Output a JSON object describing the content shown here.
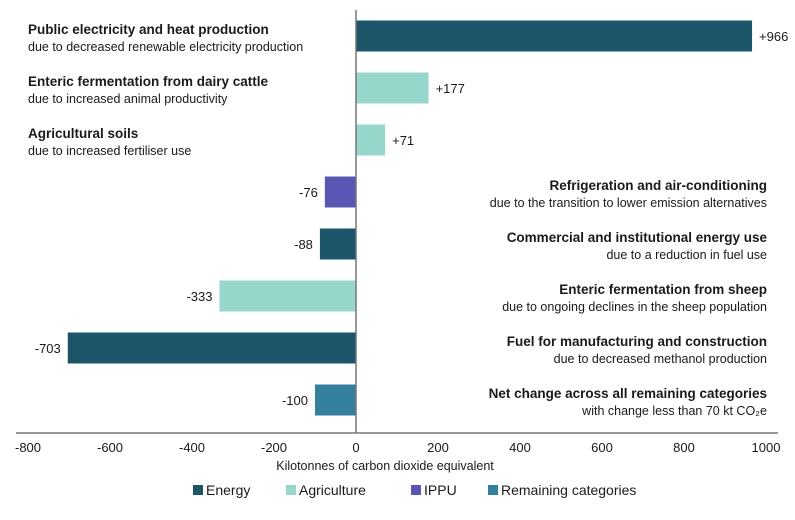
{
  "chart_data": {
    "type": "bar",
    "orientation": "horizontal",
    "title": "",
    "xlabel": "Kilotonnes of carbon dioxide equivalent",
    "ylabel": "",
    "xlim": [
      -800,
      1000
    ],
    "xticks": [
      -800,
      -600,
      -400,
      -200,
      0,
      200,
      400,
      600,
      800,
      1000
    ],
    "grid": false,
    "legend_position": "bottom",
    "legend": [
      {
        "key": "energy",
        "label": "Energy",
        "color": "#1c5468"
      },
      {
        "key": "agriculture",
        "label": "Agriculture",
        "color": "#97d6cb"
      },
      {
        "key": "ippu",
        "label": "IPPU",
        "color": "#5a56b4"
      },
      {
        "key": "remaining",
        "label": "Remaining categories",
        "color": "#34809c"
      }
    ],
    "bars": [
      {
        "title": "Public electricity and heat production",
        "subtitle": "due to decreased renewable electricity production",
        "value": 966,
        "label": "+966",
        "group": "energy"
      },
      {
        "title": "Enteric fermentation from dairy cattle",
        "subtitle": "due to increased animal productivity",
        "value": 177,
        "label": "+177",
        "group": "agriculture"
      },
      {
        "title": "Agricultural soils",
        "subtitle": "due to increased fertiliser use",
        "value": 71,
        "label": "+71",
        "group": "agriculture"
      },
      {
        "title": "Refrigeration and air-conditioning",
        "subtitle": "due to the transition to lower emission alternatives",
        "value": -76,
        "label": "-76",
        "group": "ippu"
      },
      {
        "title": "Commercial and institutional energy use",
        "subtitle": "due to a reduction in fuel use",
        "value": -88,
        "label": "-88",
        "group": "energy"
      },
      {
        "title": "Enteric fermentation from sheep",
        "subtitle": "due to ongoing declines in the sheep population",
        "value": -333,
        "label": "-333",
        "group": "agriculture"
      },
      {
        "title": "Fuel for manufacturing and construction",
        "subtitle": "due to decreased methanol production",
        "value": -703,
        "label": "-703",
        "group": "energy"
      },
      {
        "title": "Net change across all remaining categories",
        "subtitle": "with change less than 70 kt CO₂e",
        "value": -100,
        "label": "-100",
        "group": "remaining"
      }
    ]
  }
}
